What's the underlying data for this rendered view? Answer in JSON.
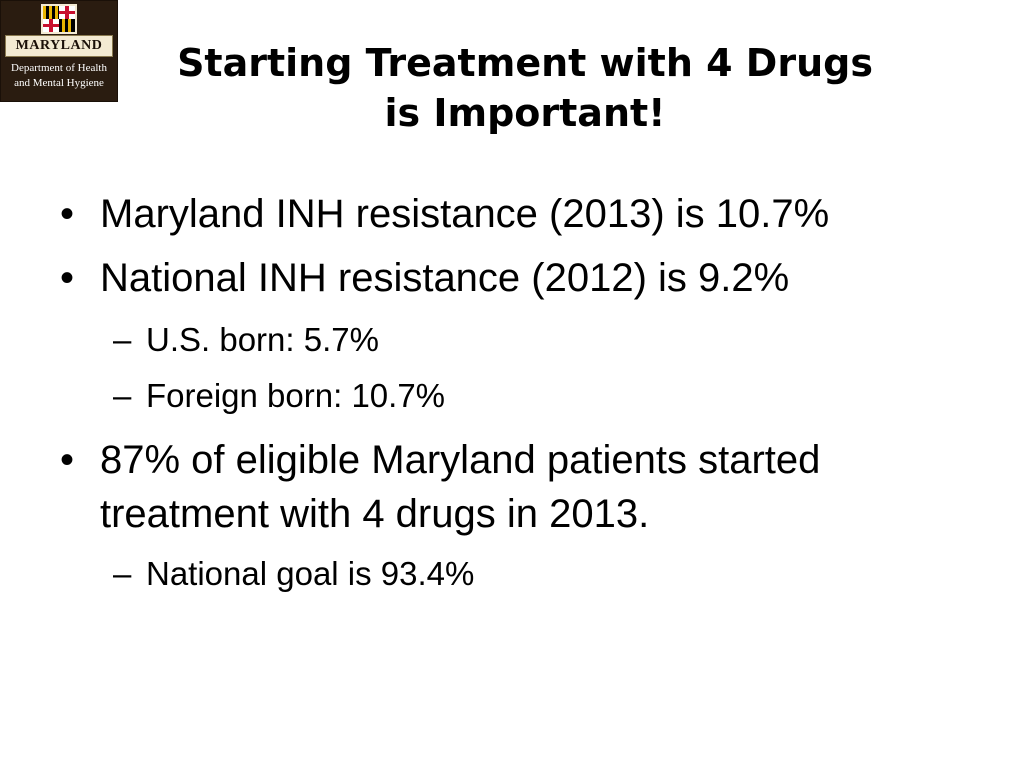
{
  "logo": {
    "name": "MARYLAND",
    "line1": "Department of Health",
    "line2": "and Mental Hygiene"
  },
  "title": {
    "line1": "Starting Treatment with 4 Drugs",
    "line2": "is Important!"
  },
  "bullets": [
    {
      "marker": "•",
      "text": "Maryland INH resistance (2013) is 10.7%"
    },
    {
      "marker": "•",
      "text": "National INH resistance (2012) is 9.2%"
    },
    {
      "marker": "–",
      "text": "U.S. born: 5.7%"
    },
    {
      "marker": "–",
      "text": "Foreign born:  10.7%"
    },
    {
      "marker": "•",
      "text": "87% of eligible Maryland patients started"
    },
    {
      "marker": "",
      "text": "treatment with 4 drugs in 2013."
    },
    {
      "marker": "–",
      "text": "National goal is 93.4%"
    }
  ]
}
